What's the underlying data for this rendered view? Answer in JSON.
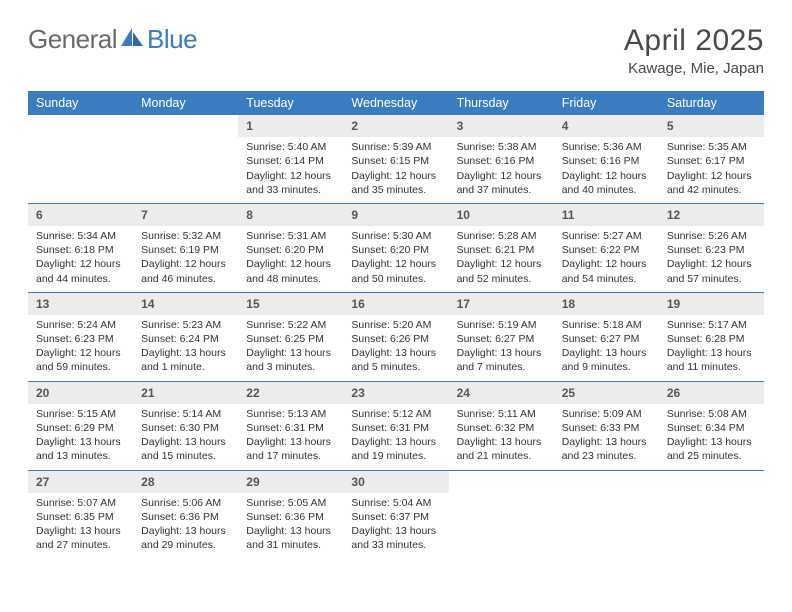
{
  "brand": {
    "part1": "General",
    "part2": "Blue"
  },
  "title": "April 2025",
  "location": "Kawage, Mie, Japan",
  "colors": {
    "header_bg": "#3b7bbf",
    "header_text": "#ffffff",
    "daynum_bg": "#ececec",
    "border": "#3b7bbf",
    "text": "#333333",
    "page_bg": "#ffffff"
  },
  "fonts": {
    "body_size": 10.5,
    "title_size": 30,
    "subtitle_size": 15,
    "header_size": 12.5,
    "daynum_size": 12
  },
  "weekdays": [
    "Sunday",
    "Monday",
    "Tuesday",
    "Wednesday",
    "Thursday",
    "Friday",
    "Saturday"
  ],
  "weeks": [
    [
      {
        "n": "",
        "sunrise": "",
        "sunset": "",
        "daylight": ""
      },
      {
        "n": "",
        "sunrise": "",
        "sunset": "",
        "daylight": ""
      },
      {
        "n": "1",
        "sunrise": "Sunrise: 5:40 AM",
        "sunset": "Sunset: 6:14 PM",
        "daylight": "Daylight: 12 hours and 33 minutes."
      },
      {
        "n": "2",
        "sunrise": "Sunrise: 5:39 AM",
        "sunset": "Sunset: 6:15 PM",
        "daylight": "Daylight: 12 hours and 35 minutes."
      },
      {
        "n": "3",
        "sunrise": "Sunrise: 5:38 AM",
        "sunset": "Sunset: 6:16 PM",
        "daylight": "Daylight: 12 hours and 37 minutes."
      },
      {
        "n": "4",
        "sunrise": "Sunrise: 5:36 AM",
        "sunset": "Sunset: 6:16 PM",
        "daylight": "Daylight: 12 hours and 40 minutes."
      },
      {
        "n": "5",
        "sunrise": "Sunrise: 5:35 AM",
        "sunset": "Sunset: 6:17 PM",
        "daylight": "Daylight: 12 hours and 42 minutes."
      }
    ],
    [
      {
        "n": "6",
        "sunrise": "Sunrise: 5:34 AM",
        "sunset": "Sunset: 6:18 PM",
        "daylight": "Daylight: 12 hours and 44 minutes."
      },
      {
        "n": "7",
        "sunrise": "Sunrise: 5:32 AM",
        "sunset": "Sunset: 6:19 PM",
        "daylight": "Daylight: 12 hours and 46 minutes."
      },
      {
        "n": "8",
        "sunrise": "Sunrise: 5:31 AM",
        "sunset": "Sunset: 6:20 PM",
        "daylight": "Daylight: 12 hours and 48 minutes."
      },
      {
        "n": "9",
        "sunrise": "Sunrise: 5:30 AM",
        "sunset": "Sunset: 6:20 PM",
        "daylight": "Daylight: 12 hours and 50 minutes."
      },
      {
        "n": "10",
        "sunrise": "Sunrise: 5:28 AM",
        "sunset": "Sunset: 6:21 PM",
        "daylight": "Daylight: 12 hours and 52 minutes."
      },
      {
        "n": "11",
        "sunrise": "Sunrise: 5:27 AM",
        "sunset": "Sunset: 6:22 PM",
        "daylight": "Daylight: 12 hours and 54 minutes."
      },
      {
        "n": "12",
        "sunrise": "Sunrise: 5:26 AM",
        "sunset": "Sunset: 6:23 PM",
        "daylight": "Daylight: 12 hours and 57 minutes."
      }
    ],
    [
      {
        "n": "13",
        "sunrise": "Sunrise: 5:24 AM",
        "sunset": "Sunset: 6:23 PM",
        "daylight": "Daylight: 12 hours and 59 minutes."
      },
      {
        "n": "14",
        "sunrise": "Sunrise: 5:23 AM",
        "sunset": "Sunset: 6:24 PM",
        "daylight": "Daylight: 13 hours and 1 minute."
      },
      {
        "n": "15",
        "sunrise": "Sunrise: 5:22 AM",
        "sunset": "Sunset: 6:25 PM",
        "daylight": "Daylight: 13 hours and 3 minutes."
      },
      {
        "n": "16",
        "sunrise": "Sunrise: 5:20 AM",
        "sunset": "Sunset: 6:26 PM",
        "daylight": "Daylight: 13 hours and 5 minutes."
      },
      {
        "n": "17",
        "sunrise": "Sunrise: 5:19 AM",
        "sunset": "Sunset: 6:27 PM",
        "daylight": "Daylight: 13 hours and 7 minutes."
      },
      {
        "n": "18",
        "sunrise": "Sunrise: 5:18 AM",
        "sunset": "Sunset: 6:27 PM",
        "daylight": "Daylight: 13 hours and 9 minutes."
      },
      {
        "n": "19",
        "sunrise": "Sunrise: 5:17 AM",
        "sunset": "Sunset: 6:28 PM",
        "daylight": "Daylight: 13 hours and 11 minutes."
      }
    ],
    [
      {
        "n": "20",
        "sunrise": "Sunrise: 5:15 AM",
        "sunset": "Sunset: 6:29 PM",
        "daylight": "Daylight: 13 hours and 13 minutes."
      },
      {
        "n": "21",
        "sunrise": "Sunrise: 5:14 AM",
        "sunset": "Sunset: 6:30 PM",
        "daylight": "Daylight: 13 hours and 15 minutes."
      },
      {
        "n": "22",
        "sunrise": "Sunrise: 5:13 AM",
        "sunset": "Sunset: 6:31 PM",
        "daylight": "Daylight: 13 hours and 17 minutes."
      },
      {
        "n": "23",
        "sunrise": "Sunrise: 5:12 AM",
        "sunset": "Sunset: 6:31 PM",
        "daylight": "Daylight: 13 hours and 19 minutes."
      },
      {
        "n": "24",
        "sunrise": "Sunrise: 5:11 AM",
        "sunset": "Sunset: 6:32 PM",
        "daylight": "Daylight: 13 hours and 21 minutes."
      },
      {
        "n": "25",
        "sunrise": "Sunrise: 5:09 AM",
        "sunset": "Sunset: 6:33 PM",
        "daylight": "Daylight: 13 hours and 23 minutes."
      },
      {
        "n": "26",
        "sunrise": "Sunrise: 5:08 AM",
        "sunset": "Sunset: 6:34 PM",
        "daylight": "Daylight: 13 hours and 25 minutes."
      }
    ],
    [
      {
        "n": "27",
        "sunrise": "Sunrise: 5:07 AM",
        "sunset": "Sunset: 6:35 PM",
        "daylight": "Daylight: 13 hours and 27 minutes."
      },
      {
        "n": "28",
        "sunrise": "Sunrise: 5:06 AM",
        "sunset": "Sunset: 6:36 PM",
        "daylight": "Daylight: 13 hours and 29 minutes."
      },
      {
        "n": "29",
        "sunrise": "Sunrise: 5:05 AM",
        "sunset": "Sunset: 6:36 PM",
        "daylight": "Daylight: 13 hours and 31 minutes."
      },
      {
        "n": "30",
        "sunrise": "Sunrise: 5:04 AM",
        "sunset": "Sunset: 6:37 PM",
        "daylight": "Daylight: 13 hours and 33 minutes."
      },
      {
        "n": "",
        "sunrise": "",
        "sunset": "",
        "daylight": ""
      },
      {
        "n": "",
        "sunrise": "",
        "sunset": "",
        "daylight": ""
      },
      {
        "n": "",
        "sunrise": "",
        "sunset": "",
        "daylight": ""
      }
    ]
  ]
}
